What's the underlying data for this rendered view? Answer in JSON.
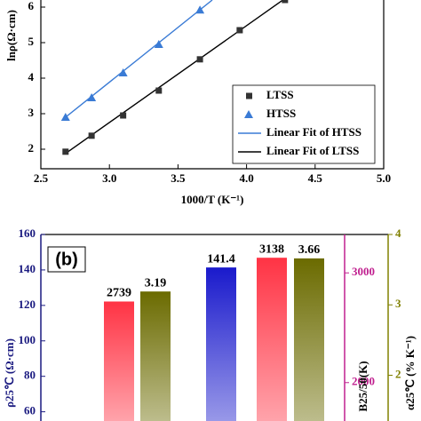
{
  "chart_data": [
    {
      "type": "scatter",
      "xlabel": "1000/T (K⁻¹)",
      "ylabel": "lnρ(Ω·cm)",
      "xlim": [
        2.5,
        5.0
      ],
      "ylim": [
        1.45,
        6.2
      ],
      "xticks": [
        2.5,
        {
          "value": 3,
          "label": "3.0"
        },
        3.5,
        {
          "value": 4,
          "label": "4.0"
        },
        4.5,
        {
          "value": 5,
          "label": "5.0"
        }
      ],
      "yticks": [
        2,
        3,
        4,
        5,
        6
      ],
      "legend": "lower right",
      "series": [
        {
          "name": "LTSS",
          "color": "#333333",
          "marker": "square",
          "x": [
            2.68,
            2.87,
            3.1,
            3.36,
            3.66,
            3.95,
            4.28
          ],
          "values": [
            1.93,
            2.38,
            2.95,
            3.65,
            4.53,
            5.35,
            6.2
          ]
        },
        {
          "name": "HTSS",
          "color": "#3a7bd5",
          "marker": "triangle",
          "x": [
            2.68,
            2.87,
            3.1,
            3.36,
            3.66
          ],
          "values": [
            2.9,
            3.45,
            4.15,
            4.95,
            5.92
          ]
        },
        {
          "name": "Linear Fit of HTSS",
          "color": "#3a7bd5",
          "marker": "line",
          "x": [
            2.68,
            3.75
          ],
          "values": [
            2.9,
            6.2
          ]
        },
        {
          "name": "Linear Fit of LTSS",
          "color": "#000000",
          "marker": "line",
          "x": [
            2.68,
            4.32
          ],
          "values": [
            1.88,
            6.35
          ]
        }
      ]
    },
    {
      "type": "bar",
      "panel_label": "(b)",
      "ylabel": "ρ25℃ (Ω·cm)",
      "y2label": "B25/50(K)",
      "y3label": "α25℃ (% K⁻¹)",
      "ylim": [
        54.8,
        160
      ],
      "yticks": [
        60,
        80,
        100,
        120,
        140,
        160
      ],
      "y2lim": [
        1650,
        3350
      ],
      "y2ticks": [
        2000,
        3000
      ],
      "y3lim": [
        1.35,
        4
      ],
      "y3ticks": [
        2,
        3,
        4
      ],
      "series": [
        {
          "color": "#1a1acc",
          "axis": "y",
          "values": [
            null,
            141.4
          ]
        },
        {
          "color": "#ff3344",
          "axis": "y2",
          "values": [
            2739,
            3138
          ]
        },
        {
          "color": "#6b6b00",
          "axis": "y3",
          "values": [
            3.19,
            3.66
          ]
        }
      ]
    }
  ]
}
